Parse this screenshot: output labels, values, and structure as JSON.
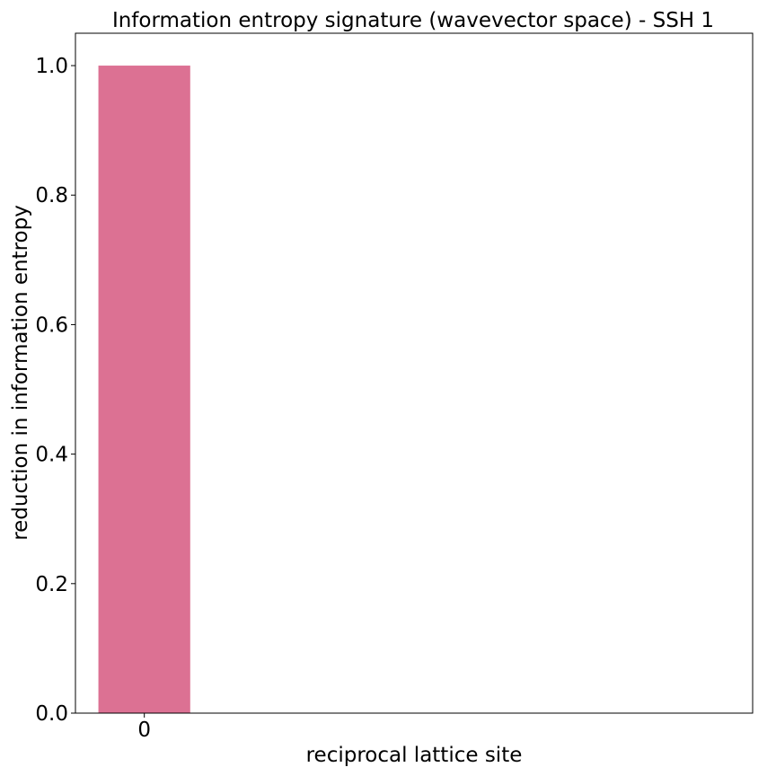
{
  "chart_data": {
    "type": "bar",
    "title": "Information entropy signature (wavevector space) - SSH 1",
    "xlabel": "reciprocal lattice site",
    "ylabel": "reduction in information entropy",
    "categories": [
      "0"
    ],
    "values": [
      1.0
    ],
    "ylim": [
      0,
      1.05
    ],
    "yticks": [
      "0.0",
      "0.2",
      "0.4",
      "0.6",
      "0.8",
      "1.0"
    ],
    "bar_color": "#dc7193",
    "grid": false,
    "legend": "none"
  }
}
